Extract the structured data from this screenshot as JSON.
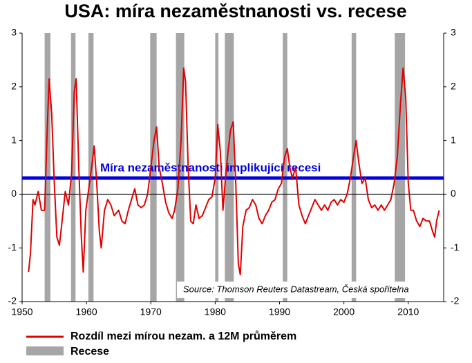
{
  "chart_data": {
    "type": "line",
    "title": "USA: míra nezaměstnanosti vs. recese",
    "annotation": "Míra nezaměstnanosti implikující recesi",
    "threshold": {
      "value": 0.3,
      "color": "#0000e0"
    },
    "source": "Source: Thomson Reuters Datastream, Česká spořitelna",
    "xlim": [
      1950,
      2015.5
    ],
    "xticks": [
      1950,
      1960,
      1970,
      1980,
      1990,
      2000,
      2010
    ],
    "ylim": [
      -2,
      3
    ],
    "yticks": [
      -2,
      -1,
      0,
      1,
      2,
      3
    ],
    "y2lim": [
      -2,
      3
    ],
    "y2ticks": [
      -2,
      -1,
      0,
      1,
      2,
      3
    ],
    "grid": false,
    "recessions": {
      "name": "Recese",
      "color": "#a6a6a6",
      "periods": [
        [
          1953.5,
          1954.4
        ],
        [
          1957.6,
          1958.3
        ],
        [
          1960.3,
          1961.1
        ],
        [
          1969.9,
          1970.9
        ],
        [
          1973.9,
          1975.2
        ],
        [
          1980.0,
          1980.5
        ],
        [
          1981.5,
          1982.9
        ],
        [
          1990.5,
          1991.2
        ],
        [
          2001.2,
          2001.9
        ],
        [
          2007.9,
          2009.5
        ]
      ]
    },
    "series": [
      {
        "name": "Rozdíl mezi mírou nezam. a 12M průměrem",
        "color": "#e00000",
        "x": [
          1951,
          1951.3,
          1951.7,
          1952,
          1952.5,
          1953,
          1953.5,
          1953.9,
          1954.2,
          1954.6,
          1955,
          1955.4,
          1955.8,
          1956.3,
          1956.7,
          1957.2,
          1957.7,
          1958.1,
          1958.4,
          1958.8,
          1959.2,
          1959.5,
          1959.9,
          1960.3,
          1960.8,
          1961.2,
          1961.6,
          1962,
          1962.3,
          1962.8,
          1963.3,
          1963.8,
          1964.3,
          1965,
          1965.5,
          1966,
          1966.5,
          1967,
          1967.5,
          1968,
          1968.5,
          1969,
          1969.5,
          1970,
          1970.5,
          1970.9,
          1971.3,
          1971.8,
          1972.3,
          1972.8,
          1973.3,
          1973.7,
          1974.2,
          1974.7,
          1975.1,
          1975.4,
          1975.8,
          1976.2,
          1976.6,
          1977,
          1977.5,
          1978,
          1978.5,
          1979,
          1979.5,
          1980,
          1980.4,
          1980.8,
          1981.2,
          1981.6,
          1982,
          1982.4,
          1982.8,
          1983.2,
          1983.6,
          1983.9,
          1984.3,
          1984.8,
          1985.3,
          1985.8,
          1986.3,
          1986.8,
          1987.3,
          1987.8,
          1988.3,
          1988.8,
          1989.3,
          1989.8,
          1990.3,
          1990.8,
          1991.2,
          1991.6,
          1992,
          1992.5,
          1993,
          1993.5,
          1994,
          1994.5,
          1995,
          1995.5,
          1996,
          1996.5,
          1997,
          1997.5,
          1998,
          1998.5,
          1999,
          1999.5,
          2000,
          2000.5,
          2001,
          2001.5,
          2001.9,
          2002.3,
          2002.8,
          2003.3,
          2003.8,
          2004.3,
          2004.8,
          2005.3,
          2005.8,
          2006.3,
          2006.8,
          2007.3,
          2007.8,
          2008.3,
          2008.8,
          2009.2,
          2009.6,
          2010,
          2010.4,
          2010.8,
          2011.3,
          2011.8,
          2012.3,
          2012.8,
          2013.3,
          2013.8,
          2014.1,
          2014.4,
          2014.8
        ],
        "values": [
          -1.45,
          -1.1,
          -0.1,
          -0.2,
          0.05,
          -0.3,
          -0.3,
          1.2,
          2.15,
          1.5,
          0.2,
          -0.8,
          -0.95,
          -0.4,
          0.05,
          -0.2,
          0.4,
          1.9,
          2.15,
          0.5,
          -0.8,
          -1.45,
          -0.3,
          0.05,
          0.5,
          0.9,
          0.2,
          -0.7,
          -1.0,
          -0.3,
          -0.1,
          -0.2,
          -0.4,
          -0.3,
          -0.5,
          -0.55,
          -0.3,
          -0.1,
          0.1,
          -0.2,
          -0.25,
          -0.2,
          0.0,
          0.5,
          1.0,
          1.25,
          0.5,
          0.2,
          -0.15,
          -0.35,
          -0.45,
          -0.3,
          0.1,
          1.0,
          2.35,
          2.1,
          0.5,
          -0.5,
          -0.55,
          -0.2,
          -0.45,
          -0.4,
          -0.25,
          -0.1,
          -0.05,
          0.3,
          1.3,
          0.8,
          -0.3,
          0.3,
          0.8,
          1.2,
          1.35,
          0.2,
          -1.3,
          -1.5,
          -0.6,
          -0.3,
          -0.25,
          -0.1,
          -0.2,
          -0.45,
          -0.55,
          -0.4,
          -0.3,
          -0.15,
          -0.1,
          0.1,
          0.2,
          0.7,
          0.85,
          0.5,
          0.3,
          0.5,
          -0.2,
          -0.4,
          -0.55,
          -0.4,
          -0.25,
          -0.1,
          -0.2,
          -0.3,
          -0.2,
          -0.3,
          -0.15,
          -0.1,
          -0.2,
          -0.1,
          -0.15,
          0.0,
          0.3,
          0.7,
          1.0,
          0.6,
          0.2,
          0.3,
          -0.1,
          -0.25,
          -0.2,
          -0.3,
          -0.2,
          -0.3,
          -0.2,
          -0.1,
          0.2,
          0.7,
          1.7,
          2.35,
          1.8,
          0.2,
          -0.3,
          -0.3,
          -0.5,
          -0.6,
          -0.45,
          -0.5,
          -0.5,
          -0.7,
          -0.8,
          -0.5,
          -0.3
        ]
      }
    ]
  }
}
